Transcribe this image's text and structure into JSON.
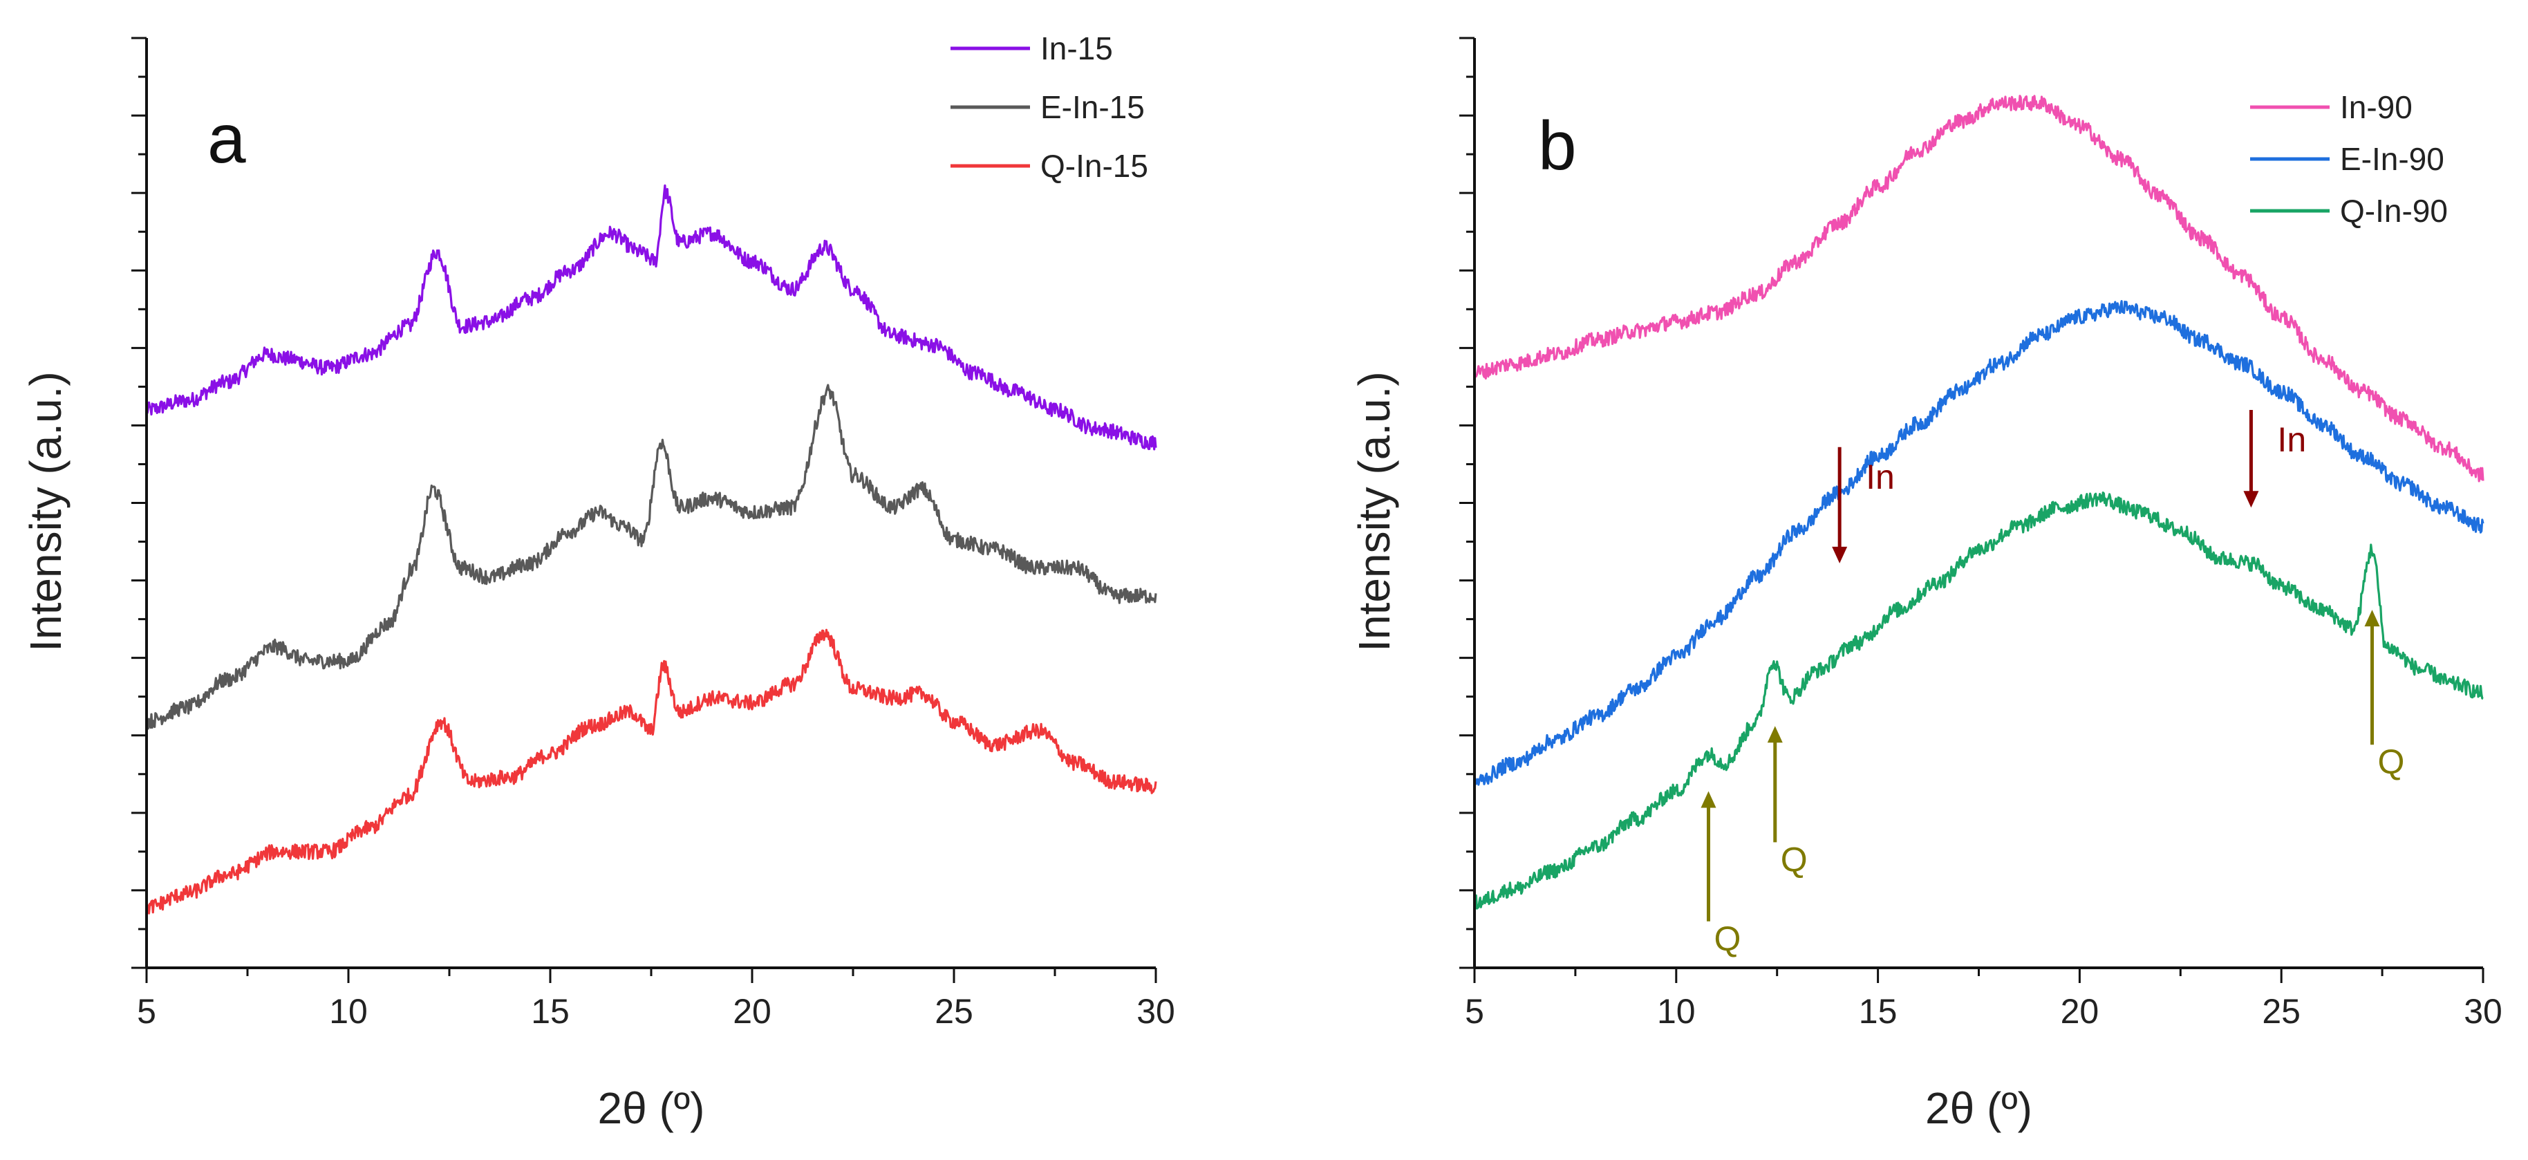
{
  "chart_data": [
    {
      "type": "line",
      "panel_label": "a",
      "xlabel": "2θ (º)",
      "ylabel": "Intensity   (a.u.)",
      "xlim": [
        5,
        30
      ],
      "xticks": [
        "5",
        "10",
        "15",
        "20",
        "25",
        "30"
      ],
      "y_tick_labels_shown": false,
      "ylim": [
        0,
        10
      ],
      "legend_position": "top-right",
      "series": [
        {
          "name": "In-15",
          "color": "#8a10e6",
          "points": [
            [
              5,
              6.0
            ],
            [
              6,
              6.1
            ],
            [
              7,
              6.3
            ],
            [
              8,
              6.6
            ],
            [
              8.5,
              6.55
            ],
            [
              9.5,
              6.45
            ],
            [
              10.5,
              6.6
            ],
            [
              11.5,
              6.9
            ],
            [
              12.2,
              7.7
            ],
            [
              12.8,
              6.9
            ],
            [
              13.5,
              6.95
            ],
            [
              14.5,
              7.2
            ],
            [
              15.5,
              7.5
            ],
            [
              16.5,
              7.9
            ],
            [
              17.2,
              7.7
            ],
            [
              17.6,
              7.6
            ],
            [
              17.85,
              8.35
            ],
            [
              18.2,
              7.8
            ],
            [
              19,
              7.9
            ],
            [
              20,
              7.6
            ],
            [
              21,
              7.3
            ],
            [
              21.8,
              7.75
            ],
            [
              22.5,
              7.3
            ],
            [
              23.5,
              6.8
            ],
            [
              24.5,
              6.7
            ],
            [
              25.5,
              6.4
            ],
            [
              26.5,
              6.2
            ],
            [
              27.5,
              6.0
            ],
            [
              28.5,
              5.8
            ],
            [
              30,
              5.65
            ]
          ]
        },
        {
          "name": "E-In-15",
          "color": "#595959",
          "points": [
            [
              5,
              2.65
            ],
            [
              6,
              2.8
            ],
            [
              7,
              3.1
            ],
            [
              8.2,
              3.45
            ],
            [
              9,
              3.3
            ],
            [
              10,
              3.3
            ],
            [
              11,
              3.7
            ],
            [
              11.6,
              4.3
            ],
            [
              12.1,
              5.15
            ],
            [
              12.8,
              4.3
            ],
            [
              13.5,
              4.2
            ],
            [
              14.5,
              4.35
            ],
            [
              15.5,
              4.7
            ],
            [
              16.2,
              4.9
            ],
            [
              16.8,
              4.75
            ],
            [
              17.3,
              4.6
            ],
            [
              17.75,
              5.65
            ],
            [
              18.2,
              4.95
            ],
            [
              19,
              5.05
            ],
            [
              20,
              4.9
            ],
            [
              21,
              4.95
            ],
            [
              21.9,
              6.2
            ],
            [
              22.5,
              5.3
            ],
            [
              23.5,
              4.95
            ],
            [
              24.2,
              5.15
            ],
            [
              25,
              4.6
            ],
            [
              26,
              4.5
            ],
            [
              27,
              4.3
            ],
            [
              28,
              4.3
            ],
            [
              29,
              4.0
            ],
            [
              30,
              4.0
            ]
          ]
        },
        {
          "name": "Q-In-15",
          "color": "#f0373a",
          "points": [
            [
              5,
              0.65
            ],
            [
              6,
              0.8
            ],
            [
              7,
              1.0
            ],
            [
              8.2,
              1.25
            ],
            [
              9.5,
              1.25
            ],
            [
              10.5,
              1.5
            ],
            [
              11.5,
              1.85
            ],
            [
              12.3,
              2.65
            ],
            [
              13,
              2.0
            ],
            [
              14,
              2.05
            ],
            [
              15,
              2.3
            ],
            [
              16,
              2.6
            ],
            [
              17,
              2.75
            ],
            [
              17.5,
              2.55
            ],
            [
              17.8,
              3.25
            ],
            [
              18.2,
              2.75
            ],
            [
              19,
              2.9
            ],
            [
              20,
              2.85
            ],
            [
              21,
              3.05
            ],
            [
              21.8,
              3.6
            ],
            [
              22.5,
              3.0
            ],
            [
              23.5,
              2.9
            ],
            [
              24.2,
              2.95
            ],
            [
              25,
              2.65
            ],
            [
              26,
              2.4
            ],
            [
              27.1,
              2.55
            ],
            [
              28,
              2.2
            ],
            [
              29,
              2.0
            ],
            [
              30,
              1.95
            ]
          ]
        }
      ]
    },
    {
      "type": "line",
      "panel_label": "b",
      "xlabel": "2θ (º)",
      "ylabel": "Intensity   (a.u.)",
      "xlim": [
        5,
        30
      ],
      "xticks": [
        "5",
        "10",
        "15",
        "20",
        "25",
        "30"
      ],
      "y_tick_labels_shown": false,
      "ylim": [
        0,
        10
      ],
      "legend_position": "top-right",
      "series": [
        {
          "name": "In-90",
          "color": "#f050b0",
          "points": [
            [
              5,
              6.4
            ],
            [
              6,
              6.5
            ],
            [
              7,
              6.6
            ],
            [
              8,
              6.75
            ],
            [
              9,
              6.85
            ],
            [
              10,
              6.95
            ],
            [
              11,
              7.05
            ],
            [
              12,
              7.25
            ],
            [
              13,
              7.6
            ],
            [
              14,
              8.0
            ],
            [
              15,
              8.4
            ],
            [
              16,
              8.8
            ],
            [
              17,
              9.1
            ],
            [
              18,
              9.3
            ],
            [
              19,
              9.3
            ],
            [
              20,
              9.05
            ],
            [
              21,
              8.7
            ],
            [
              22,
              8.3
            ],
            [
              23,
              7.85
            ],
            [
              24,
              7.45
            ],
            [
              25,
              7.0
            ],
            [
              26,
              6.55
            ],
            [
              27,
              6.2
            ],
            [
              28,
              5.9
            ],
            [
              29,
              5.6
            ],
            [
              30,
              5.3
            ]
          ]
        },
        {
          "name": "E-In-90",
          "color": "#1e6fde",
          "points": [
            [
              5,
              2.0
            ],
            [
              6,
              2.2
            ],
            [
              7,
              2.45
            ],
            [
              8,
              2.7
            ],
            [
              9,
              3.0
            ],
            [
              10,
              3.35
            ],
            [
              11,
              3.75
            ],
            [
              12,
              4.2
            ],
            [
              13,
              4.7
            ],
            [
              14,
              5.1
            ],
            [
              15,
              5.5
            ],
            [
              16,
              5.85
            ],
            [
              17,
              6.2
            ],
            [
              18,
              6.5
            ],
            [
              19,
              6.8
            ],
            [
              20,
              7.0
            ],
            [
              21,
              7.1
            ],
            [
              22,
              7.0
            ],
            [
              23,
              6.75
            ],
            [
              24,
              6.5
            ],
            [
              25,
              6.2
            ],
            [
              26,
              5.85
            ],
            [
              27,
              5.5
            ],
            [
              28,
              5.2
            ],
            [
              29,
              4.95
            ],
            [
              30,
              4.75
            ]
          ]
        },
        {
          "name": "Q-In-90",
          "color": "#19a465",
          "points": [
            [
              5,
              0.7
            ],
            [
              6,
              0.85
            ],
            [
              7,
              1.05
            ],
            [
              8,
              1.3
            ],
            [
              9,
              1.6
            ],
            [
              10,
              1.9
            ],
            [
              10.8,
              2.3
            ],
            [
              11.2,
              2.2
            ],
            [
              12,
              2.65
            ],
            [
              12.4,
              3.3
            ],
            [
              12.8,
              2.9
            ],
            [
              13.5,
              3.2
            ],
            [
              14.5,
              3.5
            ],
            [
              15.5,
              3.85
            ],
            [
              16.5,
              4.15
            ],
            [
              17.5,
              4.5
            ],
            [
              18.5,
              4.75
            ],
            [
              19.5,
              4.95
            ],
            [
              20.5,
              5.05
            ],
            [
              21.5,
              4.9
            ],
            [
              22.5,
              4.7
            ],
            [
              23.5,
              4.4
            ],
            [
              24.3,
              4.35
            ],
            [
              25,
              4.1
            ],
            [
              26,
              3.85
            ],
            [
              26.8,
              3.65
            ],
            [
              27.25,
              4.5
            ],
            [
              27.6,
              3.45
            ],
            [
              28.5,
              3.2
            ],
            [
              29.3,
              3.05
            ],
            [
              30,
              2.95
            ]
          ]
        }
      ],
      "annotations": [
        {
          "label": "In",
          "x": 14.05,
          "color": "#8b0000",
          "direction": "down",
          "series": "E-In-90",
          "y_from": 5.6,
          "y_to": 4.35
        },
        {
          "label": "In",
          "x": 24.25,
          "color": "#8b0000",
          "direction": "down",
          "series": "E-In-90",
          "y_from": 6.0,
          "y_to": 4.95
        },
        {
          "label": "Q",
          "x": 10.8,
          "color": "#7f7a00",
          "direction": "up",
          "series": "Q-In-90",
          "y_from": 0.5,
          "y_to": 1.9
        },
        {
          "label": "Q",
          "x": 12.45,
          "color": "#7f7a00",
          "direction": "up",
          "series": "Q-In-90",
          "y_from": 1.35,
          "y_to": 2.6
        },
        {
          "label": "Q",
          "x": 27.25,
          "color": "#7f7a00",
          "direction": "up",
          "series": "Q-In-90",
          "y_from": 2.4,
          "y_to": 3.85
        }
      ]
    }
  ]
}
